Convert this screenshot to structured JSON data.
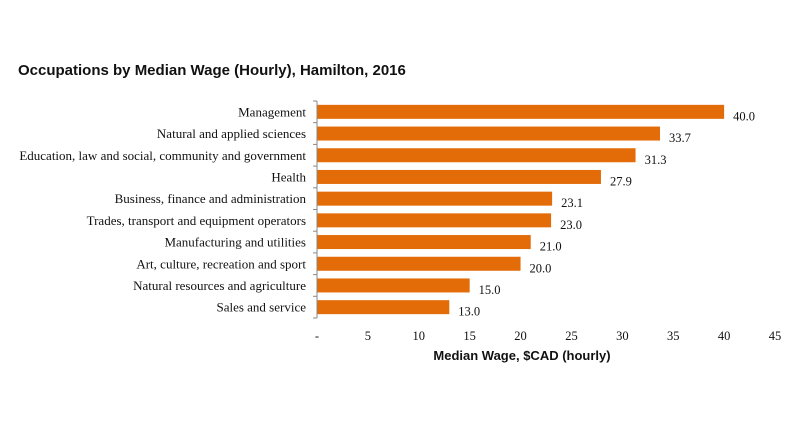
{
  "chart_data": {
    "type": "bar",
    "orientation": "horizontal",
    "title": "Occupations by Median Wage (Hourly), Hamilton, 2016",
    "xlabel": "Median Wage, $CAD (hourly)",
    "ylabel": "",
    "xlim": [
      0,
      45
    ],
    "xticks": [
      0,
      5,
      10,
      15,
      20,
      25,
      30,
      35,
      40,
      45
    ],
    "xtick_labels": [
      "-",
      "5",
      "10",
      "15",
      "20",
      "25",
      "30",
      "35",
      "40",
      "45"
    ],
    "bar_color": "#E36C09",
    "grid": false,
    "categories": [
      "Management",
      "Natural and applied sciences",
      "Education, law and social, community and government",
      "Health",
      "Business, finance and administration",
      "Trades, transport and equipment operators",
      "Manufacturing and utilities",
      "Art, culture, recreation and sport",
      "Natural resources and agriculture",
      "Sales and service"
    ],
    "values": [
      40.0,
      33.7,
      31.3,
      27.9,
      23.1,
      23.0,
      21.0,
      20.0,
      15.0,
      13.0
    ],
    "value_labels": [
      "40.0",
      "33.7",
      "31.3",
      "27.9",
      "23.1",
      "23.0",
      "21.0",
      "20.0",
      "15.0",
      "13.0"
    ]
  }
}
